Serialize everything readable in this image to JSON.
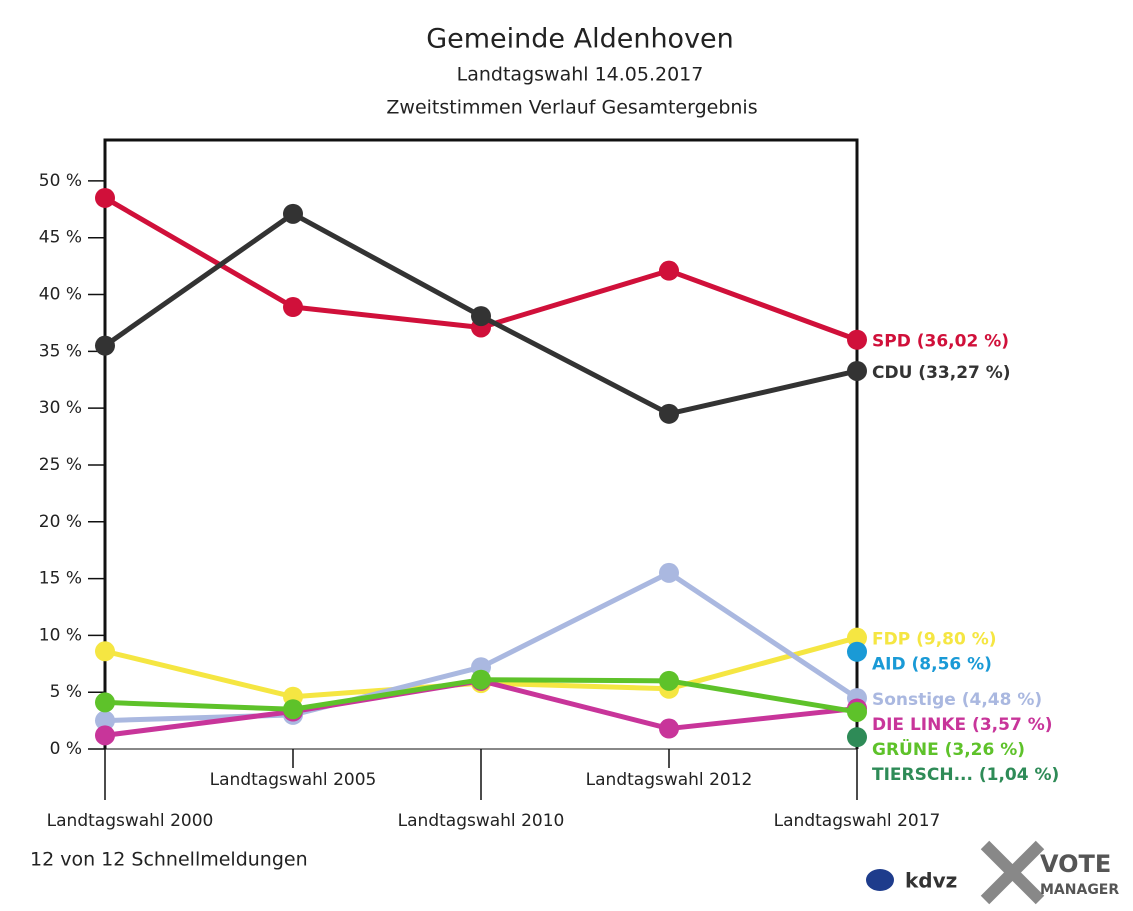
{
  "chart_data": {
    "type": "line",
    "title": "Gemeinde Aldenhoven",
    "subtitle": [
      "Landtagswahl 14.05.2017",
      "Zweitstimmen Verlauf Gesamtergebnis"
    ],
    "categories": [
      "Landtagswahl 2000",
      "Landtagswahl 2005",
      "Landtagswahl 2010",
      "Landtagswahl 2012",
      "Landtagswahl 2017"
    ],
    "series": [
      {
        "name": "SPD (36,02 %)",
        "color": "#d0103a",
        "values": [
          48.5,
          38.9,
          37.1,
          42.1,
          36.02
        ]
      },
      {
        "name": "CDU (33,27 %)",
        "color": "#333333",
        "values": [
          35.5,
          47.1,
          38.1,
          29.5,
          33.27
        ]
      },
      {
        "name": "FDP (9,80 %)",
        "color": "#f5e642",
        "values": [
          8.6,
          4.6,
          5.8,
          5.3,
          9.8
        ]
      },
      {
        "name": "AID (8,56 %)",
        "color": "#1a9ad6",
        "values": [
          null,
          null,
          null,
          null,
          8.56
        ]
      },
      {
        "name": "Sonstige (4,48 %)",
        "color": "#aab8e0",
        "values": [
          2.5,
          3.0,
          7.2,
          15.5,
          4.48
        ]
      },
      {
        "name": "DIE LINKE (3,57 %)",
        "color": "#c8359a",
        "values": [
          1.2,
          3.3,
          6.0,
          1.8,
          3.57
        ]
      },
      {
        "name": "GRÜNE (3,26 %)",
        "color": "#5ec22a",
        "values": [
          4.1,
          3.5,
          6.1,
          6.0,
          3.26
        ]
      },
      {
        "name": "TIERSCH... (1,04 %)",
        "color": "#2e8b57",
        "values": [
          null,
          null,
          null,
          null,
          1.04
        ]
      }
    ],
    "ylim": [
      0,
      53.6
    ],
    "yticks": [
      {
        "value": 0,
        "label": "0 %"
      },
      {
        "value": 5,
        "label": "5 %"
      },
      {
        "value": 10,
        "label": "10 %"
      },
      {
        "value": 15,
        "label": "15 %"
      },
      {
        "value": 20,
        "label": "20 %"
      },
      {
        "value": 25,
        "label": "25 %"
      },
      {
        "value": 30,
        "label": "30 %"
      },
      {
        "value": 35,
        "label": "35 %"
      },
      {
        "value": 40,
        "label": "40 %"
      },
      {
        "value": 45,
        "label": "45 %"
      },
      {
        "value": 50,
        "label": "50 %"
      }
    ],
    "footer": "12 von 12 Schnellmeldungen",
    "logos": [
      "kdvz",
      "VOTE",
      "MANAGER"
    ]
  }
}
